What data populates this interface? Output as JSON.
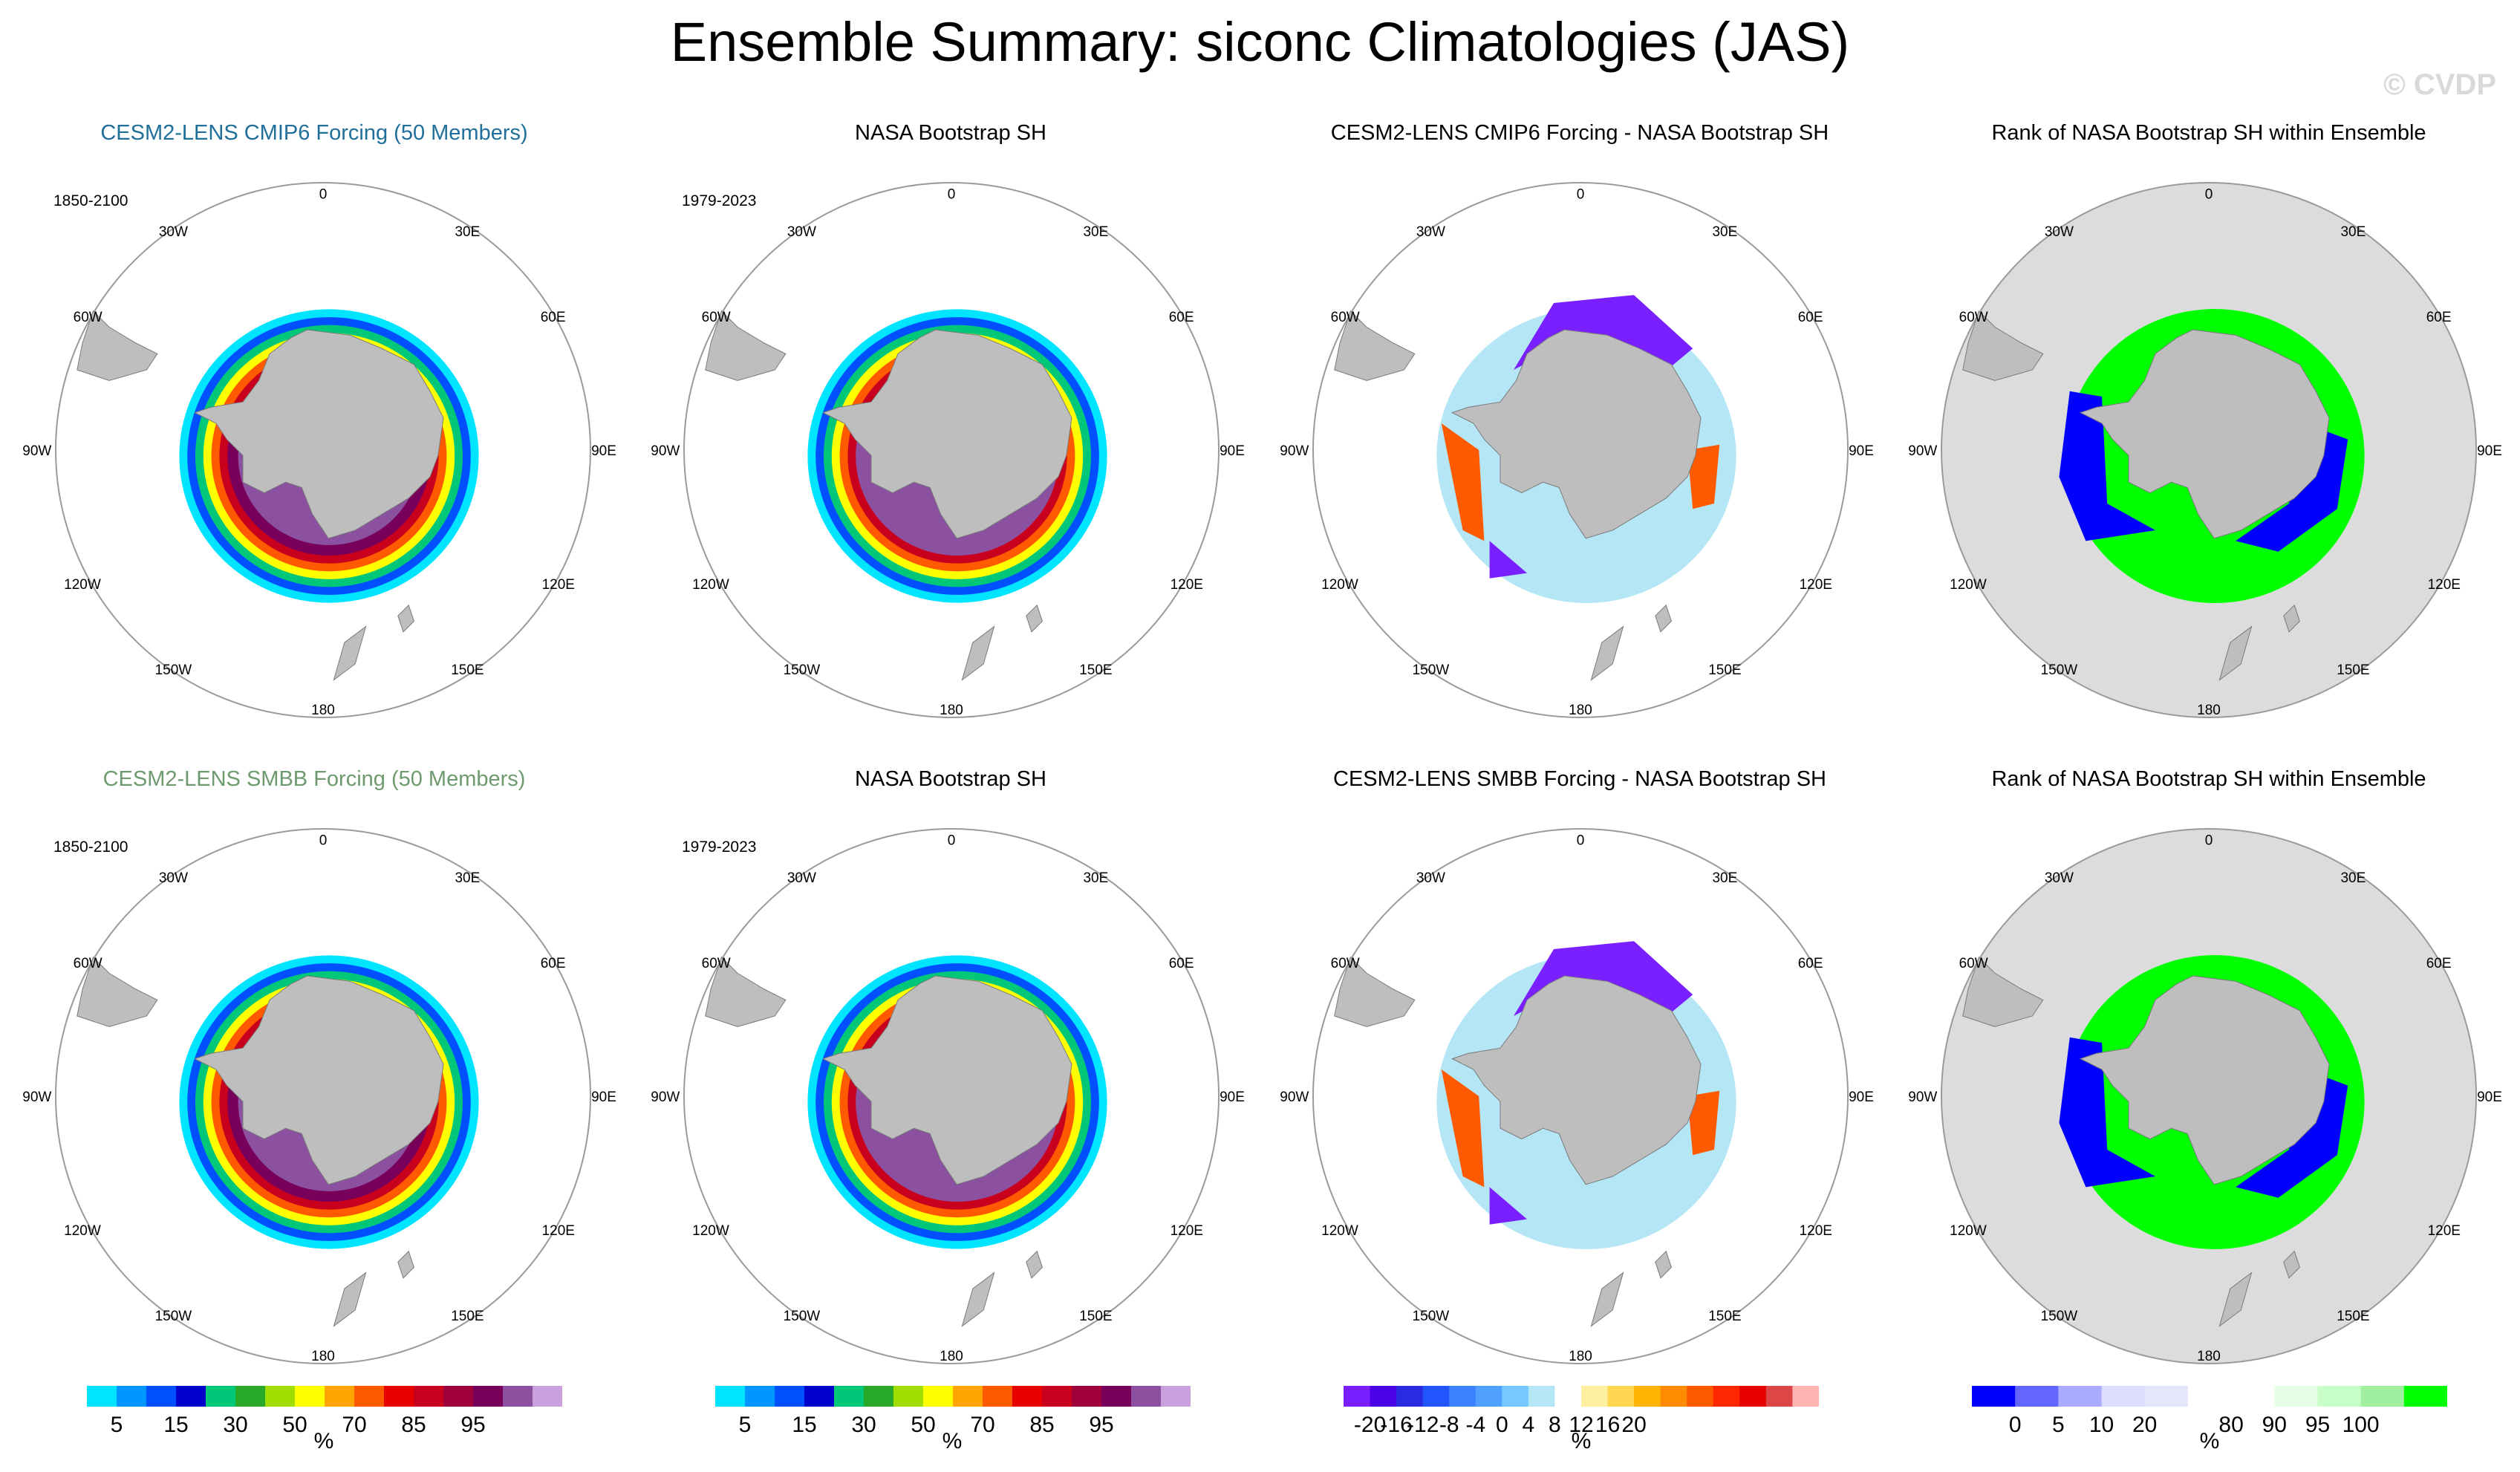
{
  "title": "Ensemble Summary: siconc Climatologies (JAS)",
  "watermark": "© CVDP",
  "colors": {
    "land": "#bebebe",
    "ocean_rank": "#dcdcdc",
    "circle": "#9a9a9a",
    "model1_title": "#1f6f9a",
    "model2_title": "#6f9a6f"
  },
  "rows": [
    {
      "panels": [
        {
          "title": "CESM2-LENS CMIP6 Forcing (50 Members)",
          "period": "1850-2100",
          "kind": "model",
          "title_color": "#1f6f9a"
        },
        {
          "title": "NASA Bootstrap SH",
          "period": "1979-2023",
          "kind": "obs",
          "title_color": "#000000"
        },
        {
          "title": "CESM2-LENS CMIP6 Forcing - NASA Bootstrap SH",
          "period": "",
          "kind": "diff",
          "title_color": "#000000"
        },
        {
          "title": "Rank of NASA Bootstrap SH within Ensemble",
          "period": "",
          "kind": "rank",
          "title_color": "#000000"
        }
      ]
    },
    {
      "panels": [
        {
          "title": "CESM2-LENS SMBB Forcing (50 Members)",
          "period": "1850-2100",
          "kind": "model",
          "title_color": "#6f9a6f"
        },
        {
          "title": "NASA Bootstrap SH",
          "period": "1979-2023",
          "kind": "obs",
          "title_color": "#000000"
        },
        {
          "title": "CESM2-LENS SMBB Forcing - NASA Bootstrap SH",
          "period": "",
          "kind": "diff",
          "title_color": "#000000"
        },
        {
          "title": "Rank of NASA Bootstrap SH within Ensemble",
          "period": "",
          "kind": "rank",
          "title_color": "#000000"
        }
      ]
    }
  ],
  "lon_labels": {
    "top": "0",
    "bottom": "180",
    "e30": "30E",
    "e60": "60E",
    "e90": "90E",
    "e120": "120E",
    "e150": "150E",
    "w30": "30W",
    "w60": "60W",
    "w90": "90W",
    "w120": "120W",
    "w150": "150W"
  },
  "colorbars": [
    {
      "units": "%",
      "colors": [
        "#00e5ff",
        "#0096ff",
        "#0050ff",
        "#0000cc",
        "#00c878",
        "#28aa28",
        "#a0dc00",
        "#ffff00",
        "#ffa500",
        "#ff5a00",
        "#e60000",
        "#c8001e",
        "#a0003c",
        "#78005a",
        "#8c50a0",
        "#c8a0dc"
      ],
      "labels": [
        "5",
        "15",
        "30",
        "50",
        "70",
        "85",
        "95"
      ],
      "label_boundaries": [
        1,
        3,
        5,
        7,
        9,
        11,
        13
      ]
    },
    {
      "units": "%",
      "colors": [
        "#00e5ff",
        "#0096ff",
        "#0050ff",
        "#0000cc",
        "#00c878",
        "#28aa28",
        "#a0dc00",
        "#ffff00",
        "#ffa500",
        "#ff5a00",
        "#e60000",
        "#c8001e",
        "#a0003c",
        "#78005a",
        "#8c50a0",
        "#c8a0dc"
      ],
      "labels": [
        "5",
        "15",
        "30",
        "50",
        "70",
        "85",
        "95"
      ],
      "label_boundaries": [
        1,
        3,
        5,
        7,
        9,
        11,
        13
      ]
    },
    {
      "units": "%",
      "colors": [
        "#7a1fff",
        "#4b00e6",
        "#2a2ae0",
        "#2255ff",
        "#3c82ff",
        "#50a0ff",
        "#78c8ff",
        "#b4e6f5",
        "#ffffff",
        "#fff0a0",
        "#ffd750",
        "#ffb400",
        "#ff8c00",
        "#ff5a00",
        "#ff2800",
        "#e60000",
        "#dc4646",
        "#ffb4b4"
      ],
      "labels": [
        "-20",
        "-16",
        "-12",
        "-8",
        "-4",
        "0",
        "4",
        "8",
        "12",
        "16",
        "20"
      ],
      "label_boundaries": [
        1,
        2,
        3,
        4,
        5,
        6,
        7,
        8,
        9,
        10,
        11
      ]
    },
    {
      "units": "%",
      "colors": [
        "#0000ff",
        "#6464ff",
        "#aaaaff",
        "#dcdcff",
        "#e6e6fa",
        "#ffffff",
        "#ffffff",
        "#e6ffe6",
        "#c8ffc8",
        "#a0f0a0",
        "#00ff00"
      ],
      "labels": [
        "0",
        "5",
        "10",
        "20",
        "80",
        "90",
        "95",
        "100"
      ],
      "label_boundaries": [
        1,
        2,
        3,
        4,
        6,
        7,
        8,
        9
      ]
    }
  ]
}
